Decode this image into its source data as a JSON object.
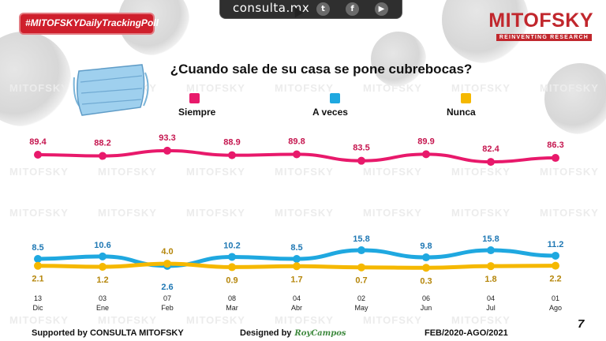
{
  "header": {
    "hashtag": "#MITOFSKYDailyTrackingPoll",
    "site": "consulta.mx",
    "logo_name": "MITOFSKY",
    "logo_tagline": "REINVENTING RESEARCH",
    "social_icons": [
      "twitter-icon",
      "facebook-icon",
      "youtube-icon"
    ]
  },
  "chart_data": {
    "type": "line",
    "title": "¿Cuando sale de su casa se pone cubrebocas?",
    "categories": [
      {
        "day": "13",
        "month": "Dic"
      },
      {
        "day": "03",
        "month": "Ene"
      },
      {
        "day": "07",
        "month": "Feb"
      },
      {
        "day": "08",
        "month": "Mar"
      },
      {
        "day": "04",
        "month": "Abr"
      },
      {
        "day": "02",
        "month": "May"
      },
      {
        "day": "06",
        "month": "Jun"
      },
      {
        "day": "04",
        "month": "Jul"
      },
      {
        "day": "01",
        "month": "Ago"
      }
    ],
    "series": [
      {
        "name": "Siempre",
        "color": "#e8196b",
        "values": [
          89.4,
          88.2,
          93.3,
          88.9,
          89.8,
          83.5,
          89.9,
          82.4,
          86.3
        ]
      },
      {
        "name": "A veces",
        "color": "#1fa8e0",
        "values": [
          8.5,
          10.6,
          2.6,
          10.2,
          8.5,
          15.8,
          9.8,
          15.8,
          11.2
        ]
      },
      {
        "name": "Nunca",
        "color": "#f5b800",
        "values": [
          2.1,
          1.2,
          4.0,
          0.9,
          1.7,
          0.7,
          0.3,
          1.8,
          2.2
        ]
      }
    ],
    "label_colors": {
      "Siempre": "#c5164f",
      "A veces": "#1f78b4",
      "Nunca": "#b5860b"
    },
    "legend_position": "top",
    "grid": false
  },
  "footer": {
    "supported_by": "Supported by   CONSULTA   MITOFSKY",
    "designed_by": "Designed by",
    "designer_signature": "RoyCampos",
    "period": "FEB/2020-AGO/2021",
    "page_number": "7"
  }
}
